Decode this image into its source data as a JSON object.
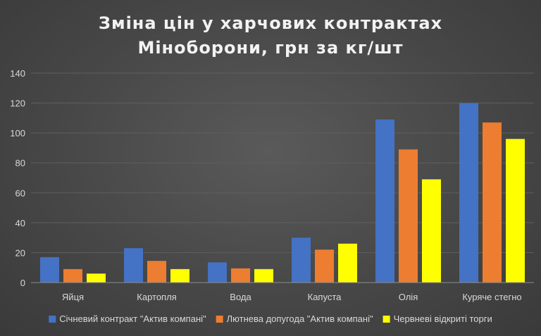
{
  "chart_data": {
    "type": "bar",
    "title_lines": [
      "Зміна цін у харчових контрактах",
      "Міноборони, грн за кг/шт"
    ],
    "categories": [
      "Яйця",
      "Картопля",
      "Вода",
      "Капуста",
      "Олія",
      "Куряче стегно"
    ],
    "series": [
      {
        "name": "Січневий контракт \"Актив компані\"",
        "color": "#4472c4",
        "values": [
          17,
          23,
          13.5,
          30,
          109,
          120
        ]
      },
      {
        "name": "Лютнева допугода \"Актив компані\"",
        "color": "#ed7d31",
        "values": [
          9,
          14.5,
          9.5,
          22,
          89,
          107
        ]
      },
      {
        "name": "Червневі відкриті торги",
        "color": "#ffff00",
        "values": [
          6,
          9,
          9,
          26,
          69,
          96
        ]
      }
    ],
    "ylim": [
      0,
      140
    ],
    "yticks": [
      0,
      20,
      40,
      60,
      80,
      100,
      120,
      140
    ],
    "xlabel": "",
    "ylabel": "",
    "grid": true,
    "legend_position": "bottom"
  }
}
